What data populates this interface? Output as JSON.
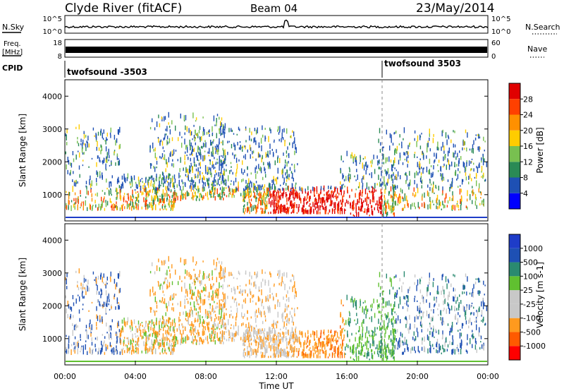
{
  "header": {
    "station": "Clyde River (fitACF)",
    "beam": "Beam 04",
    "date": "23/May/2014"
  },
  "side_labels": {
    "nsky": "N.Sky",
    "freq": "Freq.",
    "freq_unit": "[MHz]",
    "cpid": "CPID",
    "nsearch": "N.Search",
    "nave": "Nave"
  },
  "cpid_labels": [
    "twofsound -3503",
    "twofsound 3503"
  ],
  "colors": {
    "power": [
      "#0000ff",
      "#1e50b4",
      "#2a8a55",
      "#78c050",
      "#ffcc00",
      "#ff9000",
      "#ff4000",
      "#e00000"
    ],
    "velocity": [
      "#ff0000",
      "#ff5a00",
      "#ff9a1e",
      "#c8c8c8",
      "#c8c8c8",
      "#60c030",
      "#2a8a70",
      "#1e50b4",
      "#1e3cc8"
    ]
  },
  "chart_data": [
    {
      "type": "line",
      "ylabel_left": "N.Sky",
      "ylabel_right": "N.Search",
      "yticks_left": [
        "10^5",
        "10^0"
      ],
      "yticks_right": [
        "10^5",
        "10^0"
      ],
      "x_range": [
        "00:00",
        "24:00"
      ]
    },
    {
      "type": "line",
      "ylabel_left": "Freq. [MHz]",
      "ylabel_right": "Nave",
      "yticks_left": [
        "18",
        "8"
      ],
      "yticks_right": [
        "60",
        "0"
      ],
      "x_range": [
        "00:00",
        "24:00"
      ]
    },
    {
      "type": "heatmap",
      "ylabel": "Slant Range [km]",
      "yticks": [
        "1000",
        "2000",
        "3000",
        "4000"
      ],
      "ylim": [
        200,
        4500
      ],
      "colorbar_label": "Power [dB]",
      "colorbar_ticks": [
        "28",
        "24",
        "20",
        "16",
        "12",
        "8",
        "4"
      ]
    },
    {
      "type": "heatmap",
      "ylabel": "Slant Range [km]",
      "yticks": [
        "1000",
        "2000",
        "3000",
        "4000"
      ],
      "ylim": [
        200,
        4500
      ],
      "colorbar_label": "Velocity [m s-1]",
      "colorbar_ticks": [
        "1000",
        "500",
        "100",
        "25",
        "-25",
        "-100",
        "-500",
        "-1000"
      ],
      "xticks": [
        "00:00",
        "04:00",
        "08:00",
        "12:00",
        "16:00",
        "20:00",
        "00:00"
      ],
      "xlabel": "Time UT"
    }
  ]
}
